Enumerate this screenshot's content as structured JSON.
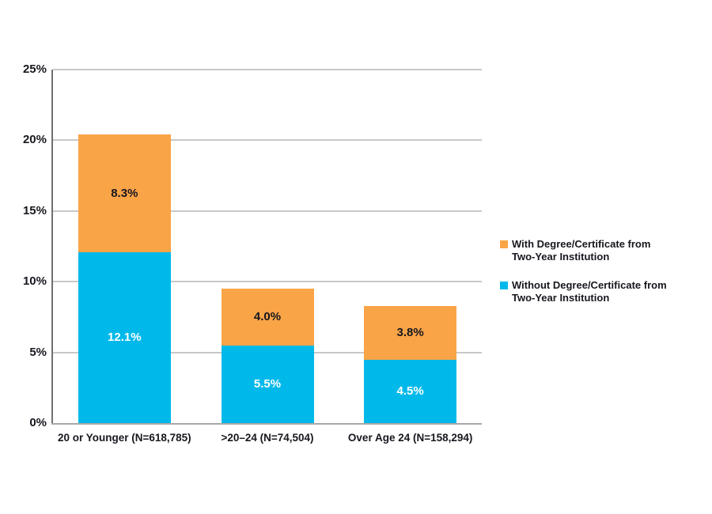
{
  "figure": {
    "background": "#FFFFFF",
    "title": ""
  },
  "chart_data": {
    "type": "bar",
    "stacked": true,
    "grid": true,
    "legend_position": "right",
    "ylim": [
      0,
      25
    ],
    "yticks": [
      {
        "value": 25,
        "label": "25%"
      },
      {
        "value": 20,
        "label": "20%"
      },
      {
        "value": 15,
        "label": "15%"
      },
      {
        "value": 10,
        "label": "10%"
      },
      {
        "value": 5,
        "label": "5%"
      },
      {
        "value": 0,
        "label": "0%"
      }
    ],
    "categories": [
      "20 or Younger (N=618,785)",
      ">20–24 (N=74,504)",
      "Over Age 24 (N=158,294)"
    ],
    "series": [
      {
        "name": "With Degree/Certificate from Two-Year Institution",
        "legend_lines": [
          "With Degree/Certificate from",
          "Two-Year Institution"
        ],
        "stack_order": "top",
        "color": "#F9A447",
        "values": [
          8.3,
          4.0,
          3.8
        ],
        "labels": [
          "8.3%",
          "4.0%",
          "3.8%"
        ],
        "label_color": "#17171F"
      },
      {
        "name": "Without Degree/Certificate from Two-Year Institution",
        "legend_lines": [
          "Without Degree/Certificate from",
          "Two-Year Institution"
        ],
        "stack_order": "bottom",
        "color": "#00B9EA",
        "values": [
          12.1,
          5.5,
          4.5
        ],
        "labels": [
          "12.1%",
          "5.5%",
          "4.5%"
        ],
        "label_color": "#FFFFFF"
      }
    ],
    "colors": {
      "gridline": "#C8C8C8",
      "axis_x": "#A8A8A8",
      "axis_y": "#707070",
      "text": "#17171F",
      "background": "#FFFFFF"
    }
  }
}
